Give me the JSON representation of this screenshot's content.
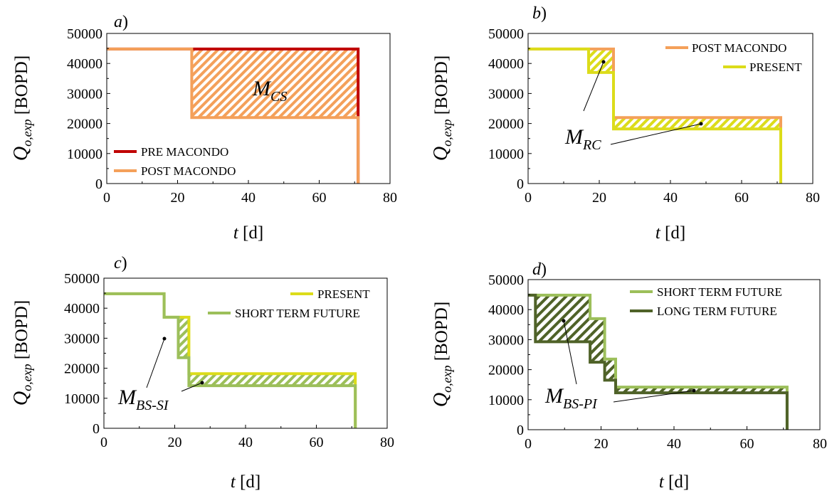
{
  "chart_data": [
    {
      "type": "line",
      "panel_label": "a",
      "xlabel_var": "t",
      "xlabel_unit": " [d]",
      "ylabel_var": "Q",
      "ylabel_sub": "o,exp",
      "ylabel_unit": " [BOPD]",
      "xlim": [
        0,
        80
      ],
      "ylim": [
        0,
        50000
      ],
      "xticks": [
        "0",
        "20",
        "40",
        "60",
        "80"
      ],
      "yticks": [
        "0",
        "10000",
        "20000",
        "30000",
        "40000",
        "50000"
      ],
      "legend_position": "bottom-left",
      "series": [
        {
          "name": "PRE MACONDO",
          "color": "#c00000",
          "x": [
            0,
            71,
            71
          ],
          "y": [
            44800,
            44800,
            0
          ]
        },
        {
          "name": "POST MACONDO",
          "color": "#f4a05a",
          "x": [
            0,
            24,
            24,
            71,
            71
          ],
          "y": [
            44800,
            44800,
            22000,
            22000,
            0
          ]
        }
      ],
      "annotations": [
        {
          "main": "M",
          "sub": "CS"
        }
      ]
    },
    {
      "type": "line",
      "panel_label": "b",
      "xlabel_var": "t",
      "xlabel_unit": " [d]",
      "ylabel_var": "Q",
      "ylabel_sub": "o,exp",
      "ylabel_unit": " [BOPD]",
      "xlim": [
        0,
        80
      ],
      "ylim": [
        0,
        50000
      ],
      "xticks": [
        "0",
        "20",
        "40",
        "60",
        "80"
      ],
      "yticks": [
        "0",
        "10000",
        "20000",
        "30000",
        "40000",
        "50000"
      ],
      "legend_position": "top-right",
      "series": [
        {
          "name": "POST MACONDO",
          "color": "#f4a05a",
          "x": [
            0,
            24,
            24,
            71,
            71
          ],
          "y": [
            44800,
            44800,
            22000,
            22000,
            0
          ]
        },
        {
          "name": "PRESENT",
          "color": "#dcdc1a",
          "x": [
            0,
            17,
            17,
            24,
            24,
            71,
            71
          ],
          "y": [
            44800,
            44800,
            37000,
            37000,
            18200,
            18200,
            0
          ]
        }
      ],
      "annotations": [
        {
          "main": "M",
          "sub": "RC"
        }
      ]
    },
    {
      "type": "line",
      "panel_label": "c",
      "xlabel_var": "t",
      "xlabel_unit": " [d]",
      "ylabel_var": "Q",
      "ylabel_sub": "o,exp",
      "ylabel_unit": " [BOPD]",
      "xlim": [
        0,
        80
      ],
      "ylim": [
        0,
        50000
      ],
      "xticks": [
        "0",
        "20",
        "40",
        "60",
        "80"
      ],
      "yticks": [
        "0",
        "10000",
        "20000",
        "30000",
        "40000",
        "50000"
      ],
      "legend_position": "top-right",
      "series": [
        {
          "name": "PRESENT",
          "color": "#dcdc1a",
          "x": [
            0,
            17,
            17,
            24,
            24,
            71,
            71
          ],
          "y": [
            44800,
            44800,
            37000,
            37000,
            18200,
            18200,
            0
          ]
        },
        {
          "name": "SHORT TERM FUTURE",
          "color": "#9cbf5a",
          "x": [
            0,
            17,
            17,
            21,
            21,
            24,
            24,
            71,
            71
          ],
          "y": [
            44800,
            44800,
            37000,
            37000,
            23500,
            23500,
            14200,
            14200,
            0
          ]
        }
      ],
      "annotations": [
        {
          "main": "M",
          "sub": "BS-SI"
        }
      ]
    },
    {
      "type": "line",
      "panel_label": "d",
      "xlabel_var": "t",
      "xlabel_unit": " [d]",
      "ylabel_var": "Q",
      "ylabel_sub": "o,exp",
      "ylabel_unit": " [BOPD]",
      "xlim": [
        0,
        80
      ],
      "ylim": [
        0,
        50000
      ],
      "xticks": [
        "0",
        "20",
        "40",
        "60",
        "80"
      ],
      "yticks": [
        "0",
        "10000",
        "20000",
        "30000",
        "40000",
        "50000"
      ],
      "legend_position": "top-right",
      "series": [
        {
          "name": "SHORT TERM FUTURE",
          "color": "#9cbf5a",
          "x": [
            0,
            17,
            17,
            21,
            21,
            24,
            24,
            71,
            71
          ],
          "y": [
            44800,
            44800,
            37000,
            37000,
            23500,
            23500,
            14200,
            14200,
            0
          ]
        },
        {
          "name": "LONG TERM FUTURE",
          "color": "#4f6228",
          "x": [
            0,
            2,
            2,
            17,
            17,
            21,
            21,
            24,
            24,
            71,
            71
          ],
          "y": [
            44800,
            44800,
            29300,
            29300,
            22500,
            22500,
            16500,
            16500,
            12300,
            12300,
            0
          ]
        }
      ],
      "annotations": [
        {
          "main": "M",
          "sub": "BS-PI"
        }
      ]
    }
  ]
}
